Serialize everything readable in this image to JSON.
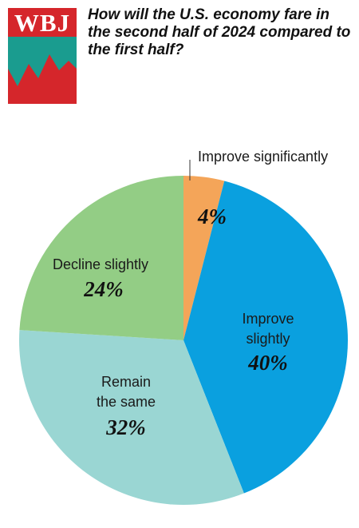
{
  "logo": {
    "text": "WBJ"
  },
  "title": "How will the U.S. economy fare in the second half of 2024 compared to the first half?",
  "colors": {
    "logo_red": "#d5262b",
    "logo_teal": "#1a9c8f",
    "improve_significantly": "#f4a559",
    "improve_slightly": "#0aa0df",
    "remain_the_same": "#9ad6d3",
    "decline_slightly": "#93cd85"
  },
  "chart_data": {
    "type": "pie",
    "title": "How will the U.S. economy fare in the second half of 2024 compared to the first half?",
    "slices": [
      {
        "label": "Improve significantly",
        "label_lines": [
          "Improve significantly"
        ],
        "value": 4,
        "display": "4%",
        "color": "#f4a559"
      },
      {
        "label": "Improve slightly",
        "label_lines": [
          "Improve",
          "slightly"
        ],
        "value": 40,
        "display": "40%",
        "color": "#0aa0df"
      },
      {
        "label": "Remain the same",
        "label_lines": [
          "Remain",
          "the same"
        ],
        "value": 32,
        "display": "32%",
        "color": "#9ad6d3"
      },
      {
        "label": "Decline slightly",
        "label_lines": [
          "Decline slightly"
        ],
        "value": 24,
        "display": "24%",
        "color": "#93cd85"
      }
    ]
  }
}
